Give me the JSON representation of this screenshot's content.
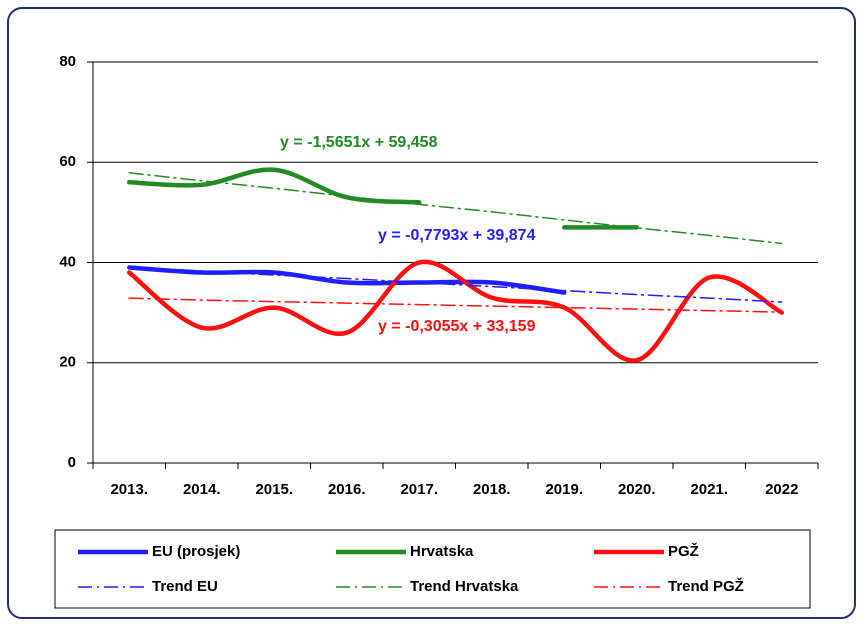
{
  "chart_data": {
    "type": "line",
    "categories": [
      "2013.",
      "2014.",
      "2015.",
      "2016.",
      "2017.",
      "2018.",
      "2019.",
      "2020.",
      "2021.",
      "2022"
    ],
    "ylim": [
      0,
      80
    ],
    "yticks": [
      0,
      20,
      40,
      60,
      80
    ],
    "grid": true,
    "series": [
      {
        "name": "EU (prosjek)",
        "color": "#1f1fff",
        "style": "solid",
        "values": [
          39,
          38,
          38,
          36,
          36,
          36,
          34,
          null,
          null,
          null
        ]
      },
      {
        "name": "Hrvatska",
        "color": "#248a24",
        "style": "solid",
        "values": [
          56,
          55.5,
          58.5,
          53,
          52,
          null,
          47,
          47,
          null,
          null
        ]
      },
      {
        "name": "PGŽ",
        "color": "#ff1010",
        "style": "solid",
        "values": [
          38,
          27,
          31,
          26,
          40,
          33,
          31,
          20.5,
          37,
          30
        ]
      },
      {
        "name": "Trend EU",
        "color": "#1f1fff",
        "style": "dash-dot",
        "values": [
          39.1,
          38.3,
          37.5,
          36.8,
          36.0,
          35.2,
          34.4,
          33.6,
          32.9,
          32.1
        ]
      },
      {
        "name": "Trend Hrvatska",
        "color": "#248a24",
        "style": "dash-dot",
        "values": [
          57.9,
          56.3,
          54.8,
          53.2,
          51.6,
          50.1,
          48.5,
          46.9,
          45.4,
          43.8
        ]
      },
      {
        "name": "Trend PGŽ",
        "color": "#ff1010",
        "style": "dash-dot",
        "values": [
          32.9,
          32.5,
          32.2,
          31.9,
          31.6,
          31.3,
          31.0,
          30.7,
          30.4,
          30.1
        ]
      }
    ],
    "annotations": [
      {
        "text": "y = -1,5651x + 59,458",
        "color": "#248a24"
      },
      {
        "text": "y = -0,7793x + 39,874",
        "color": "#1f1fff"
      },
      {
        "text": "y = -0,3055x + 33,159",
        "color": "#ff1010"
      }
    ]
  }
}
